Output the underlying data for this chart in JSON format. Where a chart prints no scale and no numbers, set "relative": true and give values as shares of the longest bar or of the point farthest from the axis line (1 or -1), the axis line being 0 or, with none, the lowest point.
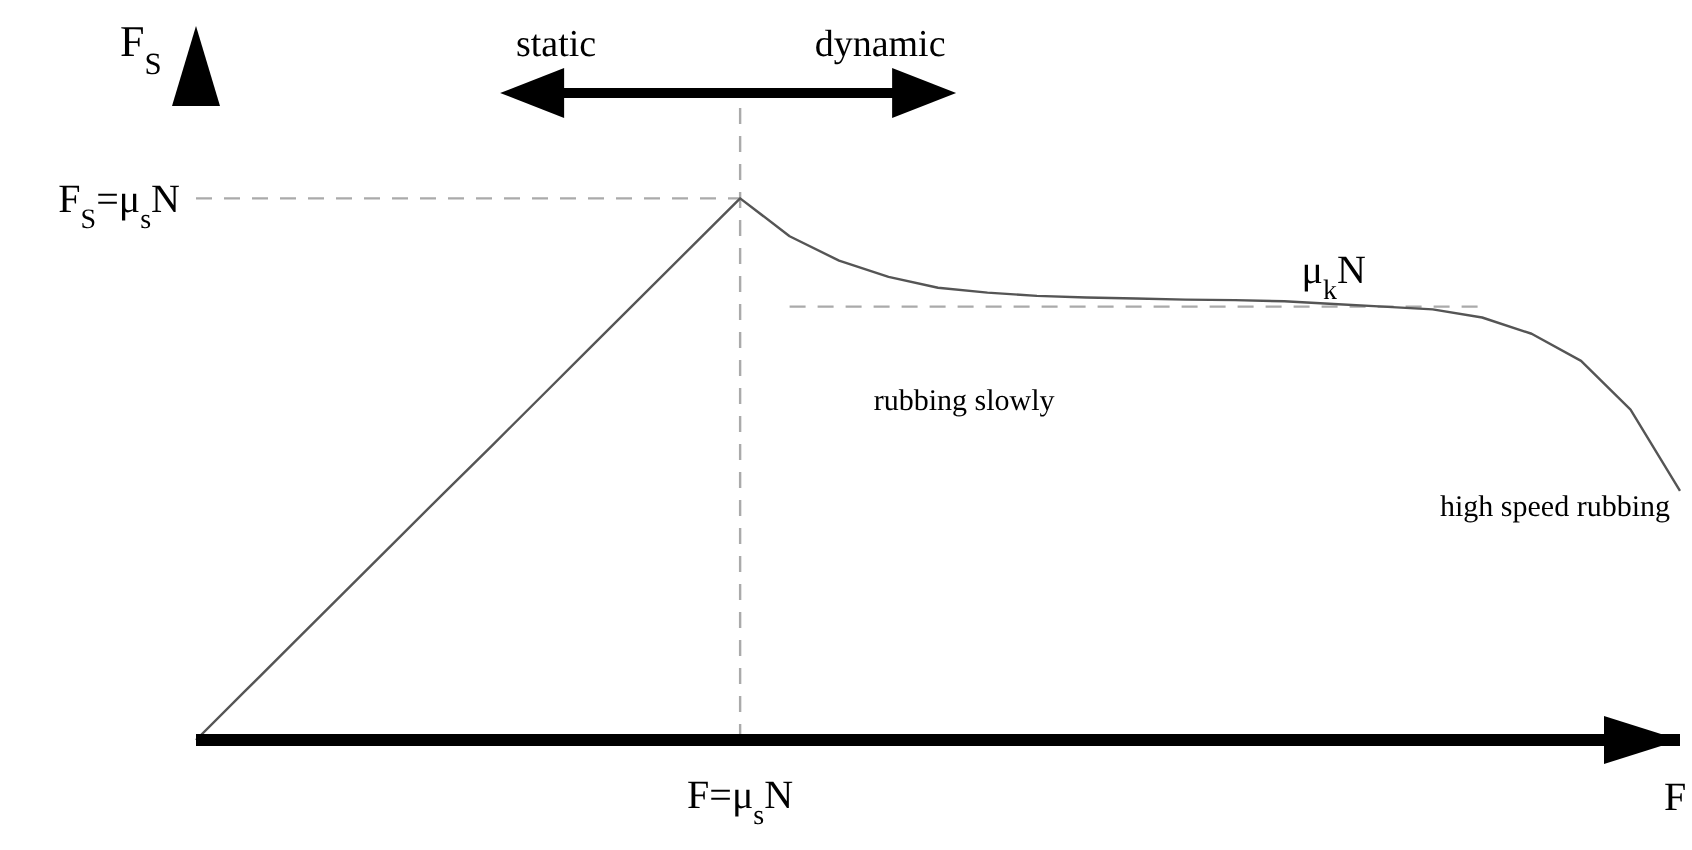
{
  "chart_data": {
    "type": "line",
    "relative": true,
    "xlabel": "F",
    "ylabel": "F$_{S}$",
    "categories": [
      null,
      null,
      null,
      null,
      null,
      null,
      null,
      null,
      null,
      null,
      null,
      null,
      null,
      null,
      null,
      null,
      null,
      null,
      null,
      null,
      null,
      null,
      null,
      null,
      null,
      null,
      null,
      null,
      null,
      null,
      null
    ],
    "values": [
      0,
      0.091,
      0.182,
      0.273,
      0.364,
      0.455,
      0.545,
      0.636,
      0.727,
      0.818,
      0.909,
      1,
      0.93,
      0.885,
      0.855,
      0.835,
      0.826,
      0.82,
      0.817,
      0.815,
      0.813,
      0.812,
      0.81,
      0.805,
      0.8,
      0.795,
      0.78,
      0.75,
      0.7,
      0.61,
      0.46
    ],
    "color": "#555555",
    "line_style": "solid",
    "ref_lines": [
      {
        "axis": "y",
        "value": 1,
        "label": "F$_{S}$=μ$_{s}$N",
        "color": "#aaaaaa",
        "line_style": "dashed"
      },
      {
        "axis": "y",
        "value": 0.8,
        "label": "μ$_{k}$N",
        "color": "#aaaaaa",
        "line_style": "dashed"
      }
    ],
    "annotations": [
      "static",
      "dynamic",
      "rubbing slowly",
      "high speed rubbing",
      "F=μ$_{s}$N"
    ]
  }
}
